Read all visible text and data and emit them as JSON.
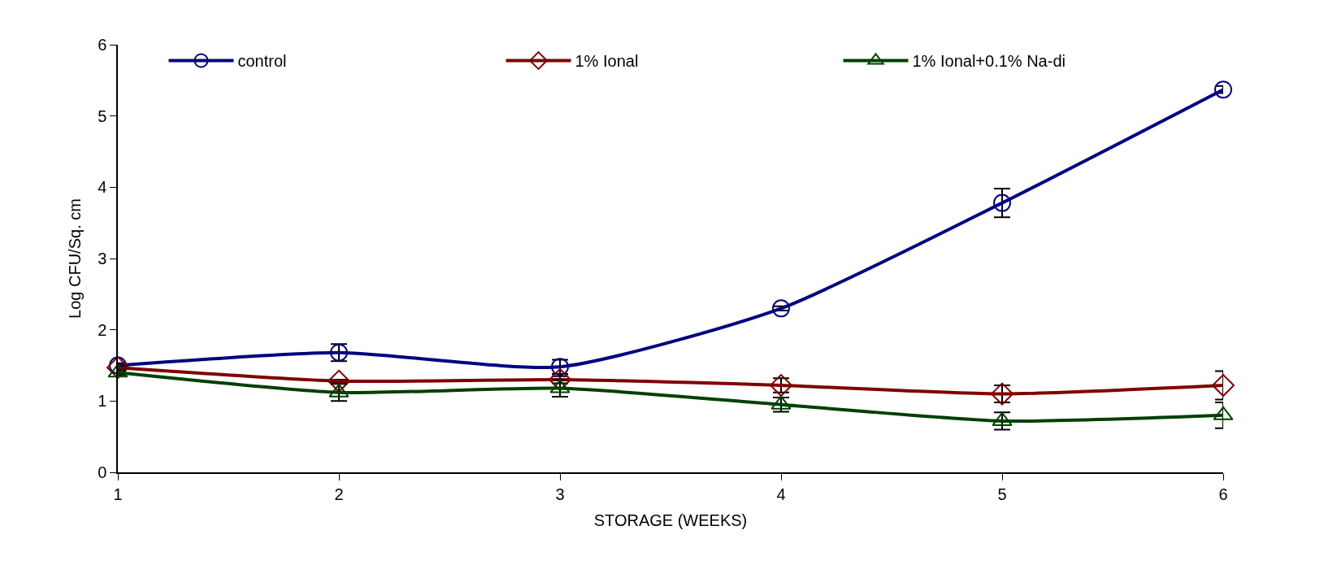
{
  "chart_data": {
    "type": "line",
    "xlabel": "STORAGE (WEEKS)",
    "ylabel": "Log CFU/Sq. cm",
    "x": [
      1,
      2,
      3,
      4,
      5,
      6
    ],
    "xlim": [
      1,
      6
    ],
    "xticks": [
      1,
      2,
      3,
      4,
      5,
      6
    ],
    "ylim": [
      0,
      6
    ],
    "yticks": [
      0,
      1,
      2,
      3,
      4,
      5,
      6
    ],
    "legend": "top",
    "line_style": "solid",
    "series": [
      {
        "name": "control",
        "color": "#000080",
        "marker": "circle",
        "values": [
          1.5,
          1.68,
          1.48,
          2.3,
          3.78,
          5.37
        ],
        "errors": [
          0.03,
          0.12,
          0.1,
          0.03,
          0.2,
          0.05
        ]
      },
      {
        "name": "1% Ional",
        "color": "#800000",
        "marker": "diamond",
        "values": [
          1.47,
          1.28,
          1.3,
          1.22,
          1.1,
          1.22
        ],
        "errors": [
          0.02,
          0.02,
          0.05,
          0.1,
          0.12,
          0.2
        ]
      },
      {
        "name": "1% Ional+0.1% Na-di",
        "color": "#004000",
        "marker": "triangle",
        "values": [
          1.4,
          1.12,
          1.18,
          0.95,
          0.72,
          0.8
        ],
        "errors": [
          0.03,
          0.12,
          0.12,
          0.1,
          0.12,
          0.18
        ]
      }
    ]
  }
}
